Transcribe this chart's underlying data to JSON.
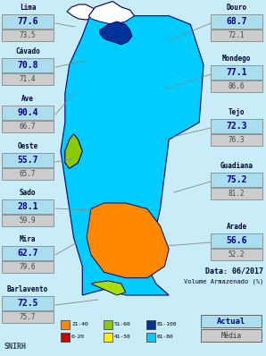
{
  "title_date": "Data: 06/2017",
  "subtitle": "Volume Armazenado (%)",
  "footer": "SNIRH",
  "legend_label": "Actual",
  "legend_label2": "Média",
  "bg_color": "#c8ecf8",
  "left_labels": [
    {
      "name": "Lima",
      "actual": "77.6",
      "media": "73.5"
    },
    {
      "name": "Cávado",
      "actual": "70.8",
      "media": "71.4"
    },
    {
      "name": "Ave",
      "actual": "90.4",
      "media": "66.7"
    },
    {
      "name": "Oeste",
      "actual": "55.7",
      "media": "65.7"
    },
    {
      "name": "Sado",
      "actual": "28.1",
      "media": "59.9"
    },
    {
      "name": "Mira",
      "actual": "62.7",
      "media": "79.6"
    },
    {
      "name": "Barlavento",
      "actual": "72.5",
      "media": "75.7"
    }
  ],
  "right_labels": [
    {
      "name": "Douro",
      "actual": "68.7",
      "media": "72.1"
    },
    {
      "name": "Mondego",
      "actual": "77.1",
      "media": "86.6"
    },
    {
      "name": "Tejo",
      "actual": "72.3",
      "media": "76.3"
    },
    {
      "name": "Guadiana",
      "actual": "75.2",
      "media": "81.2"
    },
    {
      "name": "Arade",
      "actual": "56.6",
      "media": "52.2"
    }
  ],
  "cyan_color": "#00ccff",
  "dark_blue_color": "#003399",
  "orange_color": "#ff8800",
  "green_color": "#88cc00",
  "yellow_green_color": "#aadd00",
  "white_color": "#ffffff",
  "map_border_color": "#000066",
  "actual_box_color": "#aaddee",
  "media_box_color": "#cccccc",
  "actual_text_color": "#000088",
  "legend_colors_row1": [
    "#ff8800",
    "#88cc00",
    "#003399"
  ],
  "legend_labels_row1": [
    "21-40",
    "51-60",
    "81-100"
  ],
  "legend_colors_row2": [
    "#cc0000",
    "#ffee00",
    "#00ccff"
  ],
  "legend_labels_row2": [
    "0-20",
    "41-50",
    "61-80"
  ]
}
